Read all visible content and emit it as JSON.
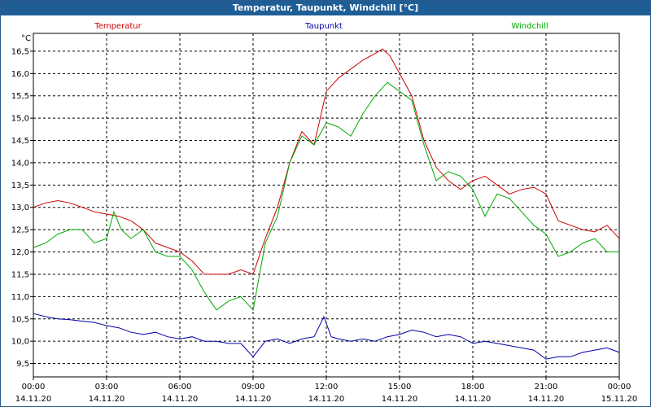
{
  "chart_data": {
    "type": "line",
    "title": "Temperatur, Taupunkt, Windchill [°C]",
    "ylabel": "°C",
    "ylim": [
      9.2,
      16.9
    ],
    "xlim": [
      0,
      24
    ],
    "yticks": [
      9.5,
      10.0,
      10.5,
      11.0,
      11.5,
      12.0,
      12.5,
      13.0,
      13.5,
      14.0,
      14.5,
      15.0,
      15.5,
      16.0,
      16.5
    ],
    "ytick_labels": [
      "9,5",
      "10,0",
      "10,5",
      "11,0",
      "11,5",
      "12,0",
      "12,5",
      "13,0",
      "13,5",
      "14,0",
      "14,5",
      "15,0",
      "15,5",
      "16,0",
      "16,5"
    ],
    "xticks": [
      0,
      3,
      6,
      9,
      12,
      15,
      18,
      21,
      24
    ],
    "xtick_labels": [
      {
        "time": "00:00",
        "date": "14.11.20"
      },
      {
        "time": "03:00",
        "date": "14.11.20"
      },
      {
        "time": "06:00",
        "date": "14.11.20"
      },
      {
        "time": "09:00",
        "date": "14.11.20"
      },
      {
        "time": "12:00",
        "date": "14.11.20"
      },
      {
        "time": "15:00",
        "date": "14.11.20"
      },
      {
        "time": "18:00",
        "date": "14.11.20"
      },
      {
        "time": "21:00",
        "date": "14.11.20"
      },
      {
        "time": "00:00",
        "date": "15.11.20"
      }
    ],
    "grid": true,
    "series": [
      {
        "name": "Temperatur",
        "color": "#cc0000",
        "x": [
          0,
          0.5,
          1,
          1.5,
          2,
          2.5,
          3,
          3.5,
          4,
          4.5,
          5,
          5.5,
          6,
          6.5,
          7,
          7.5,
          8,
          8.5,
          9,
          9.5,
          10,
          10.5,
          11,
          11.5,
          12,
          12.5,
          13,
          13.5,
          14,
          14.3,
          14.6,
          15,
          15.5,
          16,
          16.5,
          17,
          17.5,
          18,
          18.5,
          19,
          19.5,
          20,
          20.5,
          21,
          21.5,
          22,
          22.5,
          23,
          23.5,
          24
        ],
        "values": [
          13.0,
          13.1,
          13.15,
          13.1,
          13.0,
          12.9,
          12.85,
          12.8,
          12.7,
          12.5,
          12.2,
          12.1,
          12.0,
          11.8,
          11.5,
          11.5,
          11.5,
          11.6,
          11.5,
          12.3,
          13.0,
          14.0,
          14.7,
          14.4,
          15.6,
          15.9,
          16.1,
          16.3,
          16.45,
          16.55,
          16.4,
          16.0,
          15.5,
          14.5,
          13.9,
          13.6,
          13.4,
          13.6,
          13.7,
          13.5,
          13.3,
          13.4,
          13.45,
          13.3,
          12.7,
          12.6,
          12.5,
          12.45,
          12.6,
          12.3
        ]
      },
      {
        "name": "Taupunkt",
        "color": "#0000aa",
        "x": [
          0,
          0.5,
          1,
          1.5,
          2,
          2.5,
          3,
          3.5,
          4,
          4.5,
          5,
          5.5,
          6,
          6.5,
          7,
          7.5,
          8,
          8.5,
          9,
          9.5,
          10,
          10.5,
          11,
          11.5,
          11.9,
          12.2,
          12.5,
          13,
          13.5,
          14,
          14.5,
          15,
          15.5,
          16,
          16.5,
          17,
          17.5,
          18,
          18.5,
          19,
          19.5,
          20,
          20.5,
          21,
          21.5,
          22,
          22.5,
          23,
          23.5,
          24
        ],
        "values": [
          10.62,
          10.55,
          10.5,
          10.48,
          10.45,
          10.42,
          10.35,
          10.3,
          10.2,
          10.15,
          10.2,
          10.1,
          10.05,
          10.1,
          10.0,
          10.0,
          9.95,
          9.95,
          9.65,
          10.0,
          10.05,
          9.95,
          10.05,
          10.1,
          10.55,
          10.1,
          10.05,
          10.0,
          10.05,
          10.0,
          10.1,
          10.15,
          10.25,
          10.2,
          10.1,
          10.15,
          10.1,
          9.95,
          10.0,
          9.95,
          9.9,
          9.85,
          9.8,
          9.6,
          9.65,
          9.65,
          9.75,
          9.8,
          9.85,
          9.75
        ]
      },
      {
        "name": "Windchill",
        "color": "#00aa00",
        "x": [
          0,
          0.5,
          1,
          1.5,
          2,
          2.5,
          3,
          3.3,
          3.6,
          4,
          4.5,
          5,
          5.5,
          6,
          6.5,
          7,
          7.5,
          8,
          8.5,
          9,
          9.5,
          10,
          10.5,
          11,
          11.5,
          12,
          12.5,
          13,
          13.5,
          14,
          14.5,
          15,
          15.5,
          16,
          16.5,
          17,
          17.5,
          18,
          18.5,
          19,
          19.5,
          20,
          20.5,
          21,
          21.5,
          22,
          22.5,
          23,
          23.5,
          24
        ],
        "values": [
          12.1,
          12.2,
          12.4,
          12.5,
          12.5,
          12.2,
          12.3,
          12.9,
          12.5,
          12.3,
          12.5,
          12.0,
          11.9,
          11.9,
          11.6,
          11.1,
          10.7,
          10.9,
          11.0,
          10.7,
          12.2,
          12.8,
          14.0,
          14.6,
          14.4,
          14.9,
          14.8,
          14.6,
          15.1,
          15.5,
          15.8,
          15.6,
          15.4,
          14.4,
          13.6,
          13.8,
          13.7,
          13.4,
          12.8,
          13.3,
          13.2,
          12.9,
          12.6,
          12.4,
          11.9,
          12.0,
          12.2,
          12.3,
          12.0,
          12.0
        ]
      }
    ]
  }
}
